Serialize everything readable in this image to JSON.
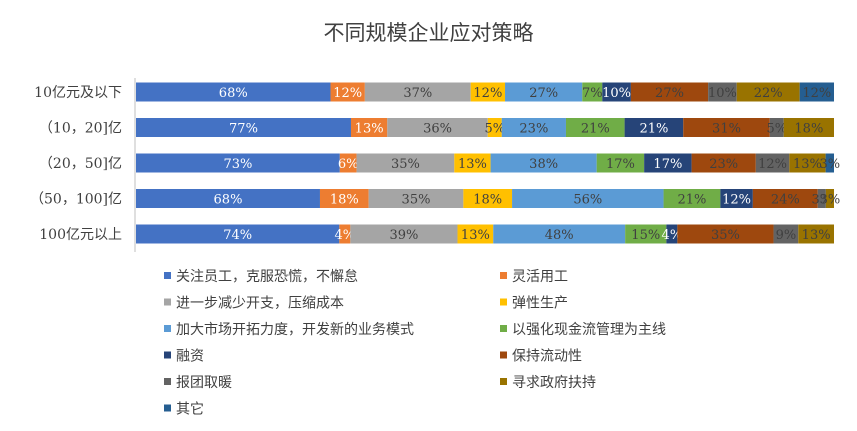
{
  "chart_data": {
    "type": "stacked-bar-horizontal",
    "title": "不同规模企业应对策略",
    "categories": [
      "10亿元及以下",
      "（10，20]亿",
      "（20，50]亿",
      "（50，100]亿",
      "100亿元以上"
    ],
    "series": [
      {
        "name": "关注员工，克服恐慌，不懈怠",
        "color": "#4472C4",
        "label_color": "#ffffff",
        "values": [
          68,
          77,
          73,
          68,
          74
        ]
      },
      {
        "name": "灵活用工",
        "color": "#ED7D31",
        "label_color": "#ffffff",
        "values": [
          12,
          13,
          6,
          18,
          4
        ]
      },
      {
        "name": "进一步减少开支，压缩成本",
        "color": "#A5A5A5",
        "label_color": "#404040",
        "values": [
          37,
          36,
          35,
          35,
          39
        ]
      },
      {
        "name": "弹性生产",
        "color": "#FFC000",
        "label_color": "#404040",
        "values": [
          12,
          5,
          13,
          18,
          13
        ]
      },
      {
        "name": "加大市场开拓力度，开发新的业务模式",
        "color": "#5B9BD5",
        "label_color": "#404040",
        "values": [
          27,
          23,
          38,
          56,
          48
        ]
      },
      {
        "name": "以强化现金流管理为主线",
        "color": "#70AD47",
        "label_color": "#404040",
        "values": [
          7,
          21,
          17,
          21,
          15
        ]
      },
      {
        "name": "融资",
        "color": "#264478",
        "label_color": "#ffffff",
        "values": [
          10,
          21,
          17,
          12,
          4
        ]
      },
      {
        "name": "保持流动性",
        "color": "#9E480E",
        "label_color": "#404040",
        "values": [
          27,
          31,
          23,
          24,
          35
        ]
      },
      {
        "name": "报团取暖",
        "color": "#636363",
        "label_color": "#404040",
        "values": [
          10,
          5,
          12,
          3,
          9
        ]
      },
      {
        "name": "寻求政府扶持",
        "color": "#997300",
        "label_color": "#404040",
        "values": [
          22,
          18,
          13,
          3,
          13
        ]
      },
      {
        "name": "其它",
        "color": "#255E91",
        "label_color": "#404040",
        "values": [
          12,
          0,
          3,
          0,
          0
        ]
      }
    ],
    "value_suffix": "%",
    "legend_position": "bottom"
  }
}
